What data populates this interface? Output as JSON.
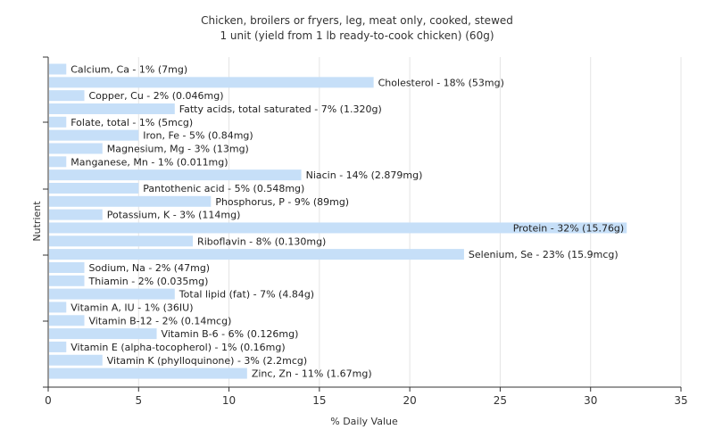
{
  "chart_data": {
    "type": "bar",
    "orientation": "horizontal",
    "title": "Chicken, broilers or fryers, leg, meat only, cooked, stewed",
    "subtitle": "1 unit (yield from 1 lb ready-to-cook chicken) (60g)",
    "xlabel": "% Daily Value",
    "ylabel": "Nutrient",
    "xlim": [
      0,
      35
    ],
    "xticks": [
      "0",
      "5",
      "10",
      "15",
      "20",
      "25",
      "30",
      "35"
    ],
    "grid": true,
    "bar_color": "#c6dff8",
    "categories": [
      "Calcium, Ca",
      "Cholesterol",
      "Copper, Cu",
      "Fatty acids, total saturated",
      "Folate, total",
      "Iron, Fe",
      "Magnesium, Mg",
      "Manganese, Mn",
      "Niacin",
      "Pantothenic acid",
      "Phosphorus, P",
      "Potassium, K",
      "Protein",
      "Riboflavin",
      "Selenium, Se",
      "Sodium, Na",
      "Thiamin",
      "Total lipid (fat)",
      "Vitamin A, IU",
      "Vitamin B-12",
      "Vitamin B-6",
      "Vitamin E (alpha-tocopherol)",
      "Vitamin K (phylloquinone)",
      "Zinc, Zn"
    ],
    "values": [
      1,
      18,
      2,
      7,
      1,
      5,
      3,
      1,
      14,
      5,
      9,
      3,
      32,
      8,
      23,
      2,
      2,
      7,
      1,
      2,
      6,
      1,
      3,
      11
    ],
    "labels": [
      "Calcium, Ca - 1% (7mg)",
      "Cholesterol - 18% (53mg)",
      "Copper, Cu - 2% (0.046mg)",
      "Fatty acids, total saturated - 7% (1.320g)",
      "Folate, total - 1% (5mcg)",
      "Iron, Fe - 5% (0.84mg)",
      "Magnesium, Mg - 3% (13mg)",
      "Manganese, Mn - 1% (0.011mg)",
      "Niacin - 14% (2.879mg)",
      "Pantothenic acid - 5% (0.548mg)",
      "Phosphorus, P - 9% (89mg)",
      "Potassium, K - 3% (114mg)",
      "Protein - 32% (15.76g)",
      "Riboflavin - 8% (0.130mg)",
      "Selenium, Se - 23% (15.9mcg)",
      "Sodium, Na - 2% (47mg)",
      "Thiamin - 2% (0.035mg)",
      "Total lipid (fat) - 7% (4.84g)",
      "Vitamin A, IU - 1% (36IU)",
      "Vitamin B-12 - 2% (0.14mcg)",
      "Vitamin B-6 - 6% (0.126mg)",
      "Vitamin E (alpha-tocopherol) - 1% (0.16mg)",
      "Vitamin K (phylloquinone) - 3% (2.2mcg)",
      "Zinc, Zn - 11% (1.67mg)"
    ]
  }
}
